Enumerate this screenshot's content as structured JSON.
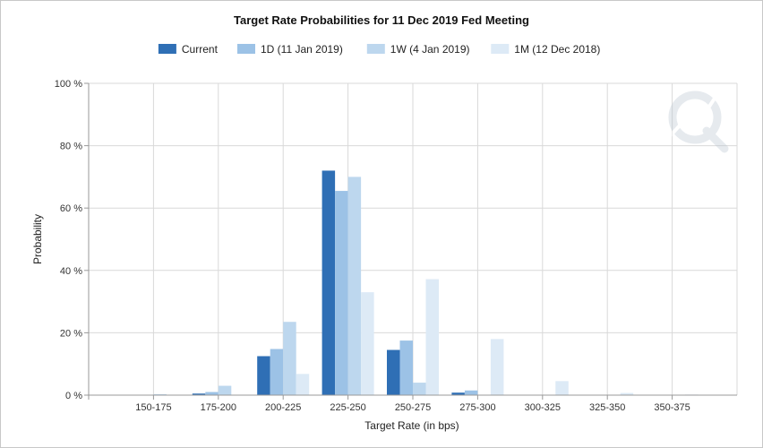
{
  "chart_data": {
    "type": "bar",
    "title": "Target Rate Probabilities for 11 Dec 2019 Fed Meeting",
    "xlabel": "Target Rate (in bps)",
    "ylabel": "Probability",
    "categories": [
      "150-175",
      "175-200",
      "200-225",
      "225-250",
      "250-275",
      "275-300",
      "300-325",
      "325-350",
      "350-375"
    ],
    "ylim": [
      0,
      100
    ],
    "yticks": [
      0,
      20,
      40,
      60,
      80,
      100
    ],
    "ytick_labels": [
      "0 %",
      "20 %",
      "40 %",
      "60 %",
      "80 %",
      "100 %"
    ],
    "grid": true,
    "legend_position": "top-center",
    "series": [
      {
        "name": "Current",
        "color": "#2f6fb5",
        "values": [
          0,
          0.5,
          12.5,
          72.0,
          14.5,
          0.8,
          0,
          0,
          0
        ]
      },
      {
        "name": "1D (11 Jan 2019)",
        "color": "#9cc2e6",
        "values": [
          0,
          1.0,
          14.8,
          65.5,
          17.5,
          1.5,
          0,
          0,
          0
        ]
      },
      {
        "name": "1W (4 Jan 2019)",
        "color": "#bdd7ee",
        "values": [
          0.3,
          3.0,
          23.5,
          70.0,
          4.0,
          0,
          0,
          0,
          0
        ]
      },
      {
        "name": "1M (12 Dec 2018)",
        "color": "#ddeaf6",
        "values": [
          0,
          0,
          6.8,
          33.0,
          37.2,
          18.0,
          4.5,
          0.7,
          0.2
        ]
      }
    ]
  },
  "watermark": {
    "icon": "quikstrike-q-logo-icon"
  }
}
